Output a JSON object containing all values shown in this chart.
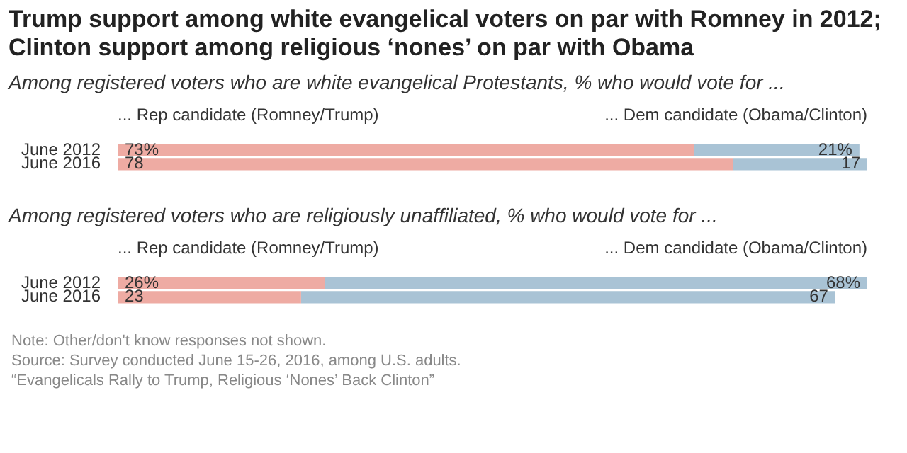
{
  "chart_data": [
    {
      "type": "bar",
      "orientation": "horizontal",
      "stacked": true,
      "tick_labels": "y",
      "title": "Trump support among white evangelical voters on par with Romney in 2012; Clinton support among religious ‘nones’ on par with Obama",
      "subtitle": "Among registered voters who are white evangelical Protestants, % who would vote for ...",
      "categories": [
        "June 2012",
        "June 2016"
      ],
      "series": [
        {
          "name": "... Rep candidate (Romney/Trump)",
          "color": "#eeaba3",
          "values": [
            73,
            78
          ],
          "value_labels": [
            "73%",
            "78"
          ]
        },
        {
          "name": "... Dem candidate (Obama/Clinton)",
          "color": "#a9c3d5",
          "values": [
            21,
            17
          ],
          "value_labels": [
            "21%",
            "17"
          ]
        }
      ]
    },
    {
      "type": "bar",
      "orientation": "horizontal",
      "stacked": true,
      "tick_labels": "y",
      "subtitle": "Among registered voters who are religiously unaffiliated, % who would vote for ...",
      "categories": [
        "June 2012",
        "June 2016"
      ],
      "series": [
        {
          "name": "... Rep candidate (Romney/Trump)",
          "color": "#eeaba3",
          "values": [
            26,
            23
          ],
          "value_labels": [
            "26%",
            "23"
          ]
        },
        {
          "name": "... Dem candidate (Obama/Clinton)",
          "color": "#a9c3d5",
          "values": [
            68,
            67
          ],
          "value_labels": [
            "68%",
            "67"
          ]
        }
      ],
      "annotations": [
        "Note: Other/don't know responses not shown.",
        "Source: Survey conducted June 15-26, 2016, among U.S. adults.",
        "“Evangelicals Rally to Trump, Religious ‘Nones’ Back Clinton”"
      ]
    }
  ]
}
